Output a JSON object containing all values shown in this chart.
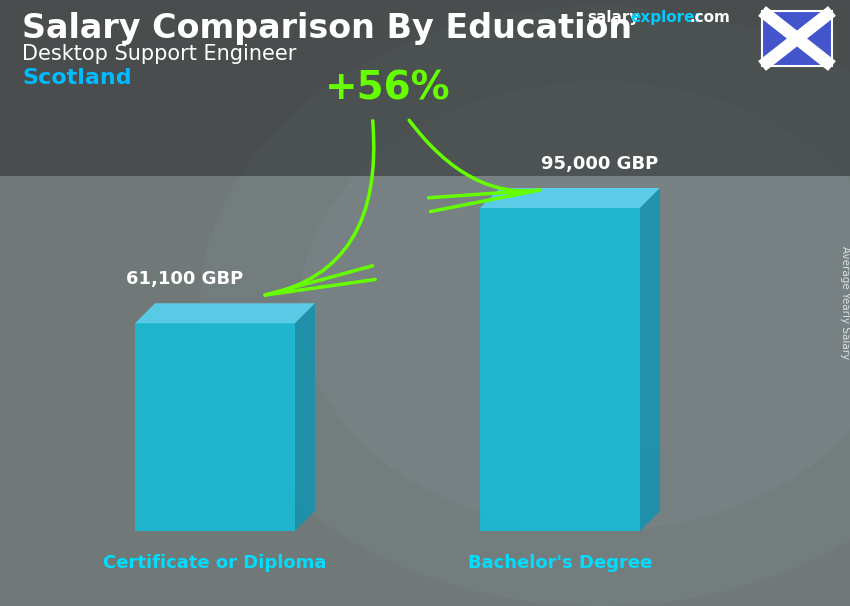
{
  "title_main": "Salary Comparison By Education",
  "subtitle1": "Desktop Support Engineer",
  "subtitle2": "Scotland",
  "categories": [
    "Certificate or Diploma",
    "Bachelor's Degree"
  ],
  "values": [
    61100,
    95000
  ],
  "labels": [
    "61,100 GBP",
    "95,000 GBP"
  ],
  "pct_label": "+56%",
  "bar_color_front": "#00ccee",
  "bar_color_top": "#55ddff",
  "bar_color_side": "#0099bb",
  "bar_alpha": 0.72,
  "cat_label_color": "#00ddff",
  "subtitle2_color": "#00bbff",
  "pct_color": "#66ff00",
  "arrow_color": "#66ff00",
  "text_color_white": "#ffffff",
  "ylabel_text": "Average Yearly Salary",
  "website_salary_color": "#ffffff",
  "website_explorer_color": "#00ccff",
  "flag_bg": "#4455cc",
  "bg_color": "#555555",
  "title_fontsize": 24,
  "subtitle1_fontsize": 15,
  "subtitle2_fontsize": 16,
  "label_fontsize": 13,
  "cat_fontsize": 13,
  "pct_fontsize": 28
}
